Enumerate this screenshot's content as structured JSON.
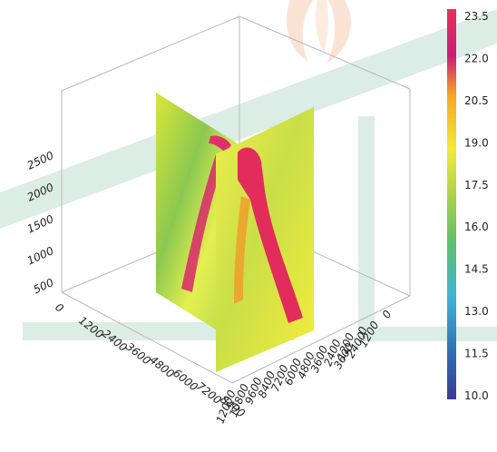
{
  "chart_data": {
    "type": "heatmap",
    "subtype": "3d-volume-slices",
    "title": "",
    "axes": {
      "vertical": {
        "label": "",
        "ticks": [
          "500",
          "1000",
          "1500",
          "2000",
          "2500"
        ]
      },
      "left": {
        "label": "",
        "ticks": [
          "0",
          "1200",
          "2400",
          "3600",
          "4800",
          "6000",
          "7200",
          "8400"
        ]
      },
      "middle": {
        "label": "",
        "ticks": [
          "12000",
          "10800",
          "9600",
          "8400",
          "7200",
          "6000",
          "4800",
          "3600",
          "2400",
          "1200",
          "0"
        ]
      },
      "right": {
        "label": "",
        "ticks": [
          "0",
          "1200",
          "2400",
          "3600",
          "4800",
          "6000",
          "7200",
          "8400",
          "9600",
          "10800",
          "12000"
        ]
      }
    },
    "colorbar": {
      "ticks": [
        "23.5",
        "22.0",
        "20.5",
        "19.0",
        "17.5",
        "16.0",
        "14.5",
        "13.0",
        "11.5",
        "10.0"
      ],
      "min": 10.0,
      "max": 23.5,
      "colors": [
        "#3a3b96",
        "#2f6db6",
        "#3fb3d8",
        "#5fbf6a",
        "#a8d14a",
        "#f2ea3a",
        "#f6a623",
        "#c81e78",
        "#e8305a"
      ]
    },
    "grid": true,
    "legend_position": "right"
  }
}
